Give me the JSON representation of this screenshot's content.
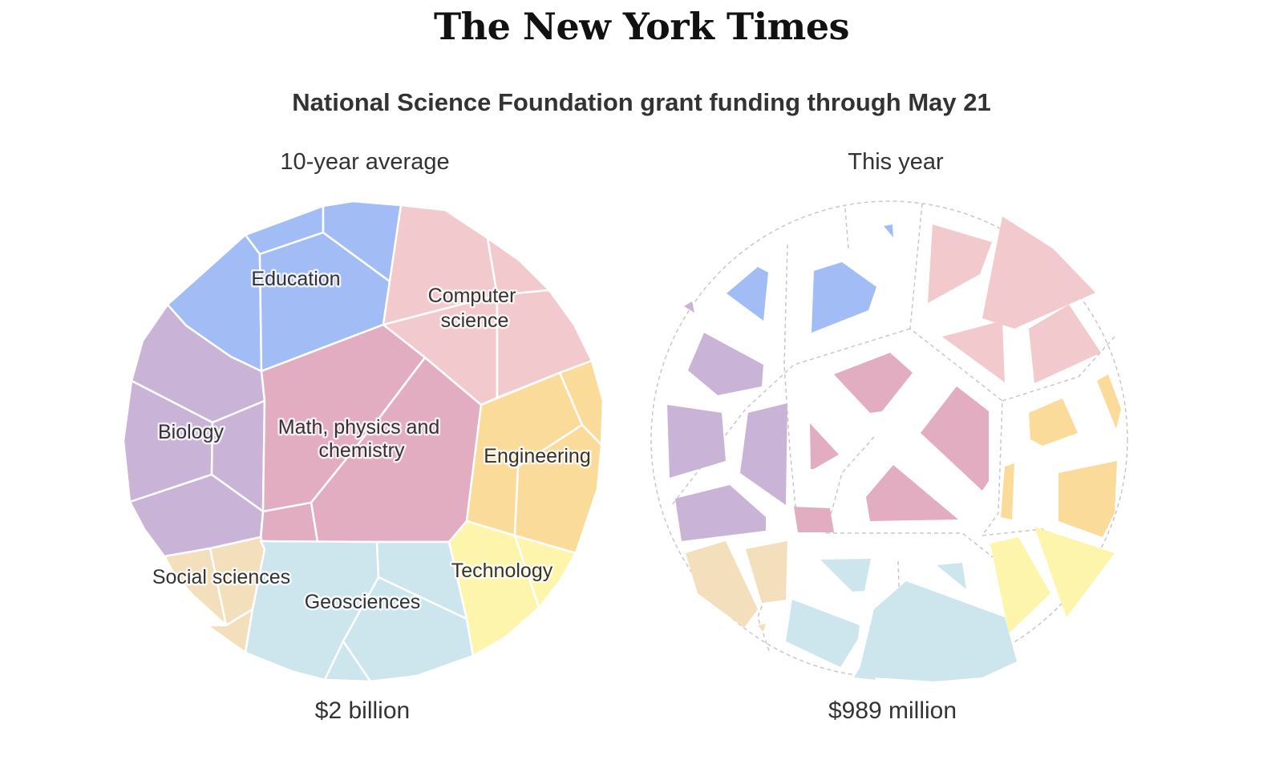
{
  "header": {
    "logo_text": "The New York Times"
  },
  "chart_data": {
    "type": "voronoi-treemap",
    "title": "National Science Foundation grant funding through May 21",
    "categories": [
      "Education",
      "Computer science",
      "Biology",
      "Math, physics and chemistry",
      "Engineering",
      "Social sciences",
      "Geosciences",
      "Technology"
    ],
    "colors": {
      "Education": "#a2bdf5",
      "Computer science": "#f2c9cc",
      "Biology": "#c9b4d8",
      "Math, physics and chemistry": "#e2adc0",
      "Engineering": "#fbdb9a",
      "Social sciences": "#f3dfbc",
      "Geosciences": "#cde6ee",
      "Technology": "#fef5ad"
    },
    "panels": [
      {
        "name": "10-year average",
        "total_label": "$2 billion",
        "total_usd": 2000000000
      },
      {
        "name": "This year",
        "total_label": "$989 million",
        "total_usd": 989000000
      }
    ]
  }
}
